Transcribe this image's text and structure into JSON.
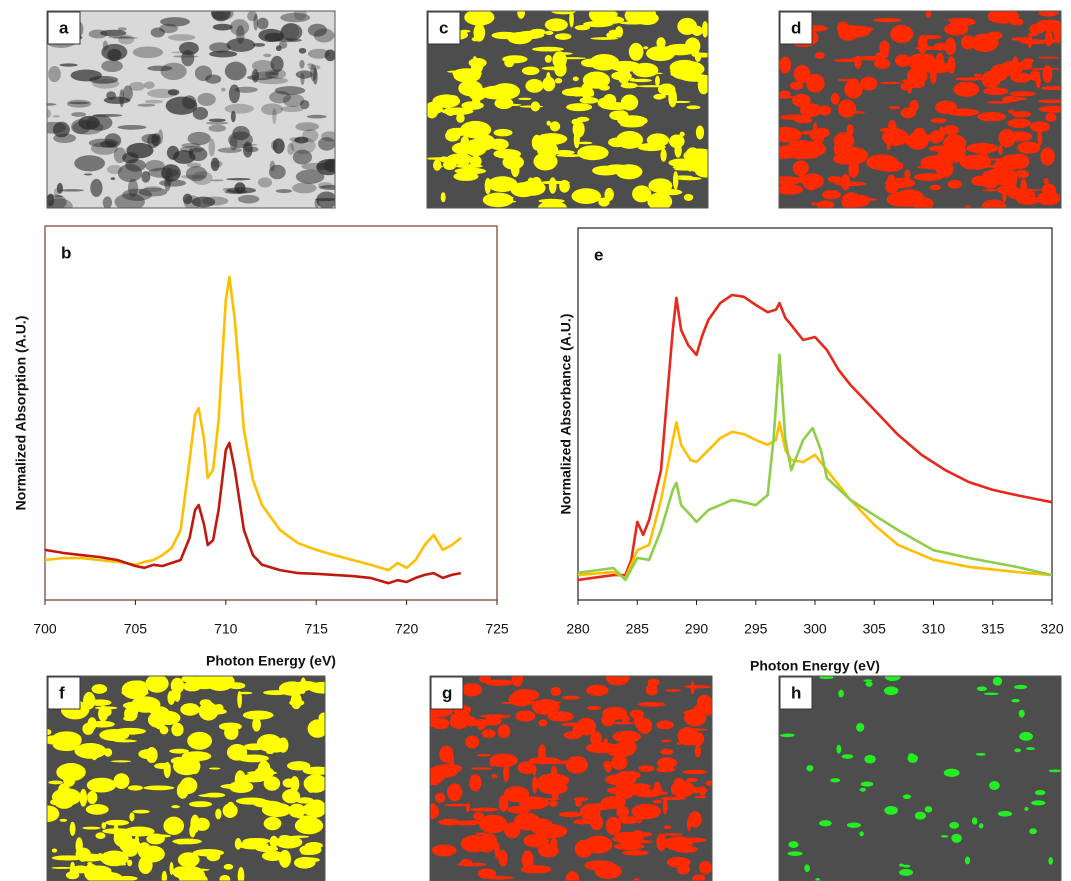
{
  "image_panels": [
    {
      "label": "a",
      "color": "#2a2a2a",
      "background": "#d9d9d9"
    },
    {
      "label": "c",
      "color": "#ffff00",
      "background": "#4d4d4d"
    },
    {
      "label": "d",
      "color": "#ff2a00",
      "background": "#4d4d4d"
    },
    {
      "label": "f",
      "color": "#ffff00",
      "background": "#4d4d4d"
    },
    {
      "label": "g",
      "color": "#ff2a00",
      "background": "#4d4d4d"
    },
    {
      "label": "h",
      "color": "#22ee22",
      "background": "#4d4d4d"
    }
  ],
  "chart_data": [
    {
      "type": "line",
      "title": "b",
      "x_label": "Photon Energy (eV)",
      "y_label": "Normalized Absorption (A.U.)",
      "xlim": [
        700,
        725
      ],
      "xticks": [
        700,
        705,
        710,
        715,
        720,
        725
      ],
      "ylim": [
        0,
        1
      ],
      "series": [
        {
          "color": "#ffbf00",
          "x": [
            700,
            701,
            702,
            703,
            704,
            705,
            705.5,
            706,
            706.5,
            707,
            707.5,
            708,
            708.3,
            708.5,
            708.8,
            709,
            709.3,
            709.6,
            710,
            710.2,
            710.5,
            711,
            711.5,
            712,
            713,
            714,
            715,
            716,
            717,
            718,
            719,
            719.5,
            720,
            720.5,
            721,
            721.5,
            722,
            722.5,
            723
          ],
          "values": [
            0.107,
            0.112,
            0.112,
            0.107,
            0.102,
            0.094,
            0.102,
            0.107,
            0.12,
            0.139,
            0.187,
            0.374,
            0.495,
            0.513,
            0.428,
            0.326,
            0.348,
            0.481,
            0.802,
            0.864,
            0.749,
            0.455,
            0.321,
            0.254,
            0.187,
            0.152,
            0.134,
            0.12,
            0.107,
            0.094,
            0.08,
            0.099,
            0.086,
            0.107,
            0.147,
            0.174,
            0.134,
            0.147,
            0.166
          ]
        },
        {
          "color": "#c0190f",
          "x": [
            700,
            701,
            702,
            703,
            704,
            705,
            705.5,
            706,
            706.5,
            707,
            707.5,
            708,
            708.3,
            708.5,
            708.8,
            709,
            709.3,
            709.6,
            710,
            710.2,
            710.5,
            711,
            711.5,
            712,
            713,
            714,
            715,
            716,
            717,
            718,
            719,
            719.5,
            720,
            720.5,
            721,
            721.5,
            722,
            722.5,
            723
          ],
          "values": [
            0.134,
            0.126,
            0.12,
            0.115,
            0.107,
            0.091,
            0.086,
            0.094,
            0.091,
            0.099,
            0.107,
            0.166,
            0.241,
            0.254,
            0.201,
            0.147,
            0.16,
            0.241,
            0.401,
            0.42,
            0.348,
            0.187,
            0.12,
            0.094,
            0.08,
            0.072,
            0.07,
            0.067,
            0.064,
            0.059,
            0.045,
            0.053,
            0.048,
            0.059,
            0.067,
            0.072,
            0.059,
            0.067,
            0.072
          ]
        }
      ]
    },
    {
      "type": "line",
      "title": "e",
      "x_label": "Photon Energy (eV)",
      "y_label": "Normalized Absorbance (A.U.)",
      "xlim": [
        280,
        320
      ],
      "xticks": [
        280,
        285,
        290,
        295,
        300,
        305,
        310,
        315,
        320
      ],
      "ylim": [
        0,
        1
      ],
      "series": [
        {
          "color": "#e8281a",
          "x": [
            280,
            283,
            284,
            284.5,
            285,
            285.5,
            286,
            287,
            288,
            288.3,
            288.7,
            289.3,
            290,
            290.5,
            291,
            292,
            293,
            294,
            295,
            296,
            296.7,
            297,
            297.5,
            298,
            299,
            300,
            301,
            302,
            303,
            305,
            307,
            309,
            311,
            313,
            315,
            317,
            319,
            320
          ],
          "values": [
            0.054,
            0.067,
            0.067,
            0.108,
            0.21,
            0.175,
            0.215,
            0.349,
            0.726,
            0.812,
            0.726,
            0.685,
            0.659,
            0.712,
            0.753,
            0.798,
            0.82,
            0.815,
            0.793,
            0.774,
            0.78,
            0.798,
            0.758,
            0.739,
            0.699,
            0.707,
            0.672,
            0.618,
            0.578,
            0.511,
            0.444,
            0.39,
            0.349,
            0.317,
            0.296,
            0.282,
            0.269,
            0.263
          ]
        },
        {
          "color": "#ffbf00",
          "x": [
            280,
            283,
            284,
            285,
            286,
            287,
            288,
            288.3,
            288.7,
            289.5,
            290,
            291,
            292,
            293,
            294,
            295,
            296,
            296.7,
            297,
            297.5,
            298,
            299,
            300,
            301,
            303,
            305,
            307,
            310,
            313,
            317,
            320
          ],
          "values": [
            0.067,
            0.075,
            0.059,
            0.134,
            0.148,
            0.269,
            0.43,
            0.478,
            0.417,
            0.376,
            0.371,
            0.403,
            0.435,
            0.452,
            0.446,
            0.43,
            0.417,
            0.43,
            0.478,
            0.403,
            0.376,
            0.371,
            0.39,
            0.349,
            0.269,
            0.202,
            0.148,
            0.108,
            0.089,
            0.075,
            0.067
          ]
        },
        {
          "color": "#8fce4a",
          "x": [
            280,
            283,
            284,
            285,
            286,
            287,
            288,
            288.3,
            288.7,
            289.5,
            290,
            291,
            292,
            293,
            294,
            295,
            296,
            296.5,
            297,
            297.5,
            298,
            299,
            299.8,
            300.5,
            301,
            303,
            305,
            307,
            310,
            313,
            317,
            320
          ],
          "values": [
            0.073,
            0.086,
            0.054,
            0.113,
            0.108,
            0.188,
            0.296,
            0.315,
            0.255,
            0.228,
            0.21,
            0.242,
            0.255,
            0.269,
            0.263,
            0.255,
            0.282,
            0.43,
            0.659,
            0.43,
            0.349,
            0.43,
            0.462,
            0.403,
            0.328,
            0.269,
            0.228,
            0.188,
            0.134,
            0.113,
            0.089,
            0.067
          ]
        }
      ]
    }
  ]
}
